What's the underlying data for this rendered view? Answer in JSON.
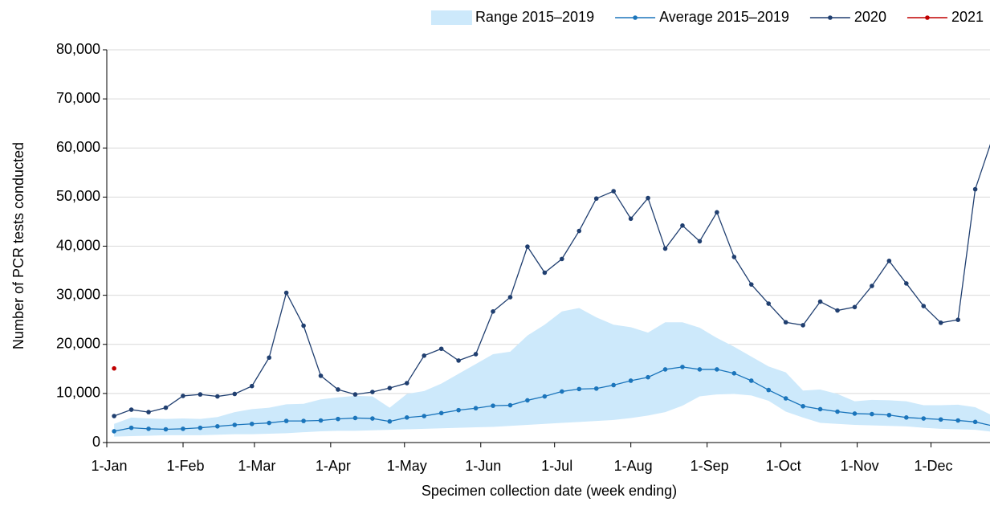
{
  "chart_data": {
    "type": "line",
    "x_label": "Specimen collection date (week ending)",
    "y_label": "Number of PCR tests conducted",
    "x": [
      2,
      9,
      16,
      23,
      30,
      37,
      44,
      51,
      58,
      65,
      72,
      79,
      86,
      93,
      100,
      107,
      114,
      121,
      128,
      135,
      142,
      149,
      156,
      163,
      170,
      177,
      184,
      191,
      198,
      205,
      212,
      219,
      226,
      233,
      240,
      247,
      254,
      261,
      268,
      275,
      282,
      289,
      296,
      303,
      310,
      317,
      324,
      331,
      338,
      345,
      352,
      359
    ],
    "xlim": [
      0,
      358
    ],
    "xticks": [
      {
        "value": 0,
        "label": "1-Jan"
      },
      {
        "value": 31,
        "label": "1-Feb"
      },
      {
        "value": 60,
        "label": "1-Mar"
      },
      {
        "value": 91,
        "label": "1-Apr"
      },
      {
        "value": 121,
        "label": "1-May"
      },
      {
        "value": 152,
        "label": "1-Jun"
      },
      {
        "value": 182,
        "label": "1-Jul"
      },
      {
        "value": 213,
        "label": "1-Aug"
      },
      {
        "value": 244,
        "label": "1-Sep"
      },
      {
        "value": 274,
        "label": "1-Oct"
      },
      {
        "value": 305,
        "label": "1-Nov"
      },
      {
        "value": 335,
        "label": "1-Dec"
      }
    ],
    "ylim": [
      0,
      80000
    ],
    "yticks": [
      0,
      {
        "value": 10000,
        "label": "10,000"
      },
      {
        "value": 20000,
        "label": "20,000"
      },
      {
        "value": 30000,
        "label": "30,000"
      },
      {
        "value": 40000,
        "label": "40,000"
      },
      {
        "value": 50000,
        "label": "50,000"
      },
      {
        "value": 60000,
        "label": "60,000"
      },
      {
        "value": 70000,
        "label": "70,000"
      },
      {
        "value": 80000,
        "label": "80,000"
      }
    ],
    "grid": true,
    "legend": "top-right",
    "series": [
      {
        "name": "Range 2015–2019",
        "type": "area",
        "color": "#cde9fb",
        "low": [
          1200,
          1300,
          1400,
          1500,
          1500,
          1500,
          1600,
          1700,
          1700,
          1800,
          1900,
          2100,
          2300,
          2400,
          2400,
          2500,
          2600,
          2700,
          2800,
          2900,
          3000,
          3100,
          3200,
          3400,
          3600,
          3800,
          4000,
          4200,
          4400,
          4600,
          5000,
          5500,
          6200,
          7500,
          9400,
          9800,
          9900,
          9600,
          8500,
          6300,
          5100,
          4000,
          3800,
          3600,
          3500,
          3400,
          3300,
          3000,
          2800,
          2700,
          2600,
          2200
        ],
        "high": [
          3800,
          5100,
          4900,
          4800,
          4900,
          4800,
          5200,
          6200,
          6800,
          7100,
          7800,
          7900,
          8800,
          9200,
          9500,
          9400,
          7100,
          9900,
          10500,
          12000,
          14000,
          16000,
          18000,
          18500,
          21800,
          24000,
          26700,
          27400,
          25500,
          24000,
          23500,
          22400,
          24500,
          24500,
          23400,
          21300,
          19500,
          17500,
          15500,
          14300,
          10600,
          10800,
          9900,
          8400,
          8700,
          8600,
          8400,
          7600,
          7600,
          7700,
          7200,
          5500
        ]
      },
      {
        "name": "Average 2015–2019",
        "type": "line",
        "color": "#1b75bb",
        "values": [
          2300,
          3000,
          2800,
          2700,
          2800,
          3000,
          3300,
          3600,
          3800,
          4000,
          4400,
          4400,
          4500,
          4800,
          5000,
          4900,
          4300,
          5100,
          5400,
          6000,
          6600,
          7000,
          7500,
          7600,
          8600,
          9400,
          10400,
          10900,
          11000,
          11700,
          12600,
          13300,
          14900,
          15400,
          14900,
          14900,
          14100,
          12600,
          10700,
          9000,
          7400,
          6800,
          6300,
          5900,
          5800,
          5600,
          5100,
          4900,
          4700,
          4500,
          4200,
          3400
        ]
      },
      {
        "name": "2020",
        "type": "line",
        "color": "#203f70",
        "values": [
          5400,
          6700,
          6200,
          7100,
          9500,
          9800,
          9400,
          9900,
          11500,
          17300,
          30500,
          23800,
          13600,
          10800,
          9800,
          10300,
          11100,
          12100,
          17700,
          19100,
          16700,
          18000,
          26700,
          29600,
          39900,
          34600,
          37400,
          43100,
          49700,
          51200,
          45600,
          49800,
          39500,
          44200,
          41000,
          46900,
          37800,
          32200,
          28300,
          24500,
          23900,
          28700,
          26900,
          27600,
          31900,
          37000,
          32400,
          27800,
          24400,
          25000,
          51600,
          62000
        ]
      },
      {
        "name": "2021",
        "type": "line",
        "color": "#c00000",
        "values": [
          15100,
          null,
          null,
          null,
          null,
          null,
          null,
          null,
          null,
          null,
          null,
          null,
          null,
          null,
          null,
          null,
          null,
          null,
          null,
          null,
          null,
          null,
          null,
          null,
          null,
          null,
          null,
          null,
          null,
          null,
          null,
          null,
          null,
          null,
          null,
          null,
          null,
          null,
          null,
          null,
          null,
          null,
          null,
          null,
          null,
          null,
          null,
          null,
          null,
          null,
          null,
          null
        ]
      }
    ]
  }
}
